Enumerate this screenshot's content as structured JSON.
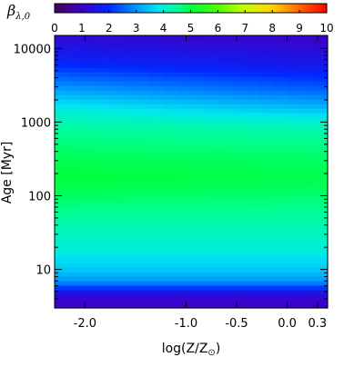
{
  "chart_data": {
    "type": "heatmap",
    "colorbar": {
      "label": "β",
      "label_subscript": "λ,0",
      "range": [
        0,
        10
      ],
      "ticks": [
        "0",
        "1",
        "2",
        "3",
        "4",
        "5",
        "6",
        "7",
        "8",
        "9",
        "10"
      ],
      "colormap": "rainbow (purple-blue-cyan-green-yellow-red)"
    },
    "x_axis": {
      "label_main": "log(Z/Z",
      "label_symbol": "⊙",
      "label_close": ")",
      "range": [
        -2.3,
        0.4
      ],
      "ticks": [
        {
          "value": -2.0,
          "label": "-2.0"
        },
        {
          "value": -1.0,
          "label": "-1.0"
        },
        {
          "value": -0.5,
          "label": "-0.5"
        },
        {
          "value": 0.0,
          "label": "0.0"
        },
        {
          "value": 0.3,
          "label": "0.3"
        }
      ]
    },
    "y_axis": {
      "label": "Age [Myr]",
      "scale": "log",
      "range": [
        3,
        15000
      ],
      "ticks": [
        {
          "value": 10,
          "label": "10"
        },
        {
          "value": 100,
          "label": "100"
        },
        {
          "value": 1000,
          "label": "1000"
        },
        {
          "value": 10000,
          "label": "10000"
        }
      ]
    },
    "heatmap_profile": {
      "description_ages_myr": [
        3,
        4.5,
        5.5,
        7,
        10,
        20,
        50,
        100,
        170,
        300,
        600,
        1000,
        1600,
        3000,
        6000,
        15000
      ],
      "beta_at_solar": [
        1.0,
        1.2,
        2.0,
        3.0,
        3.5,
        4.0,
        4.4,
        4.7,
        4.9,
        4.8,
        4.5,
        4.1,
        3.3,
        2.4,
        1.6,
        1.0
      ],
      "beta_at_low_z": [
        1.0,
        1.2,
        2.0,
        3.0,
        3.5,
        4.0,
        4.4,
        4.8,
        5.0,
        4.9,
        4.6,
        4.3,
        3.9,
        3.0,
        2.0,
        1.2
      ]
    }
  }
}
